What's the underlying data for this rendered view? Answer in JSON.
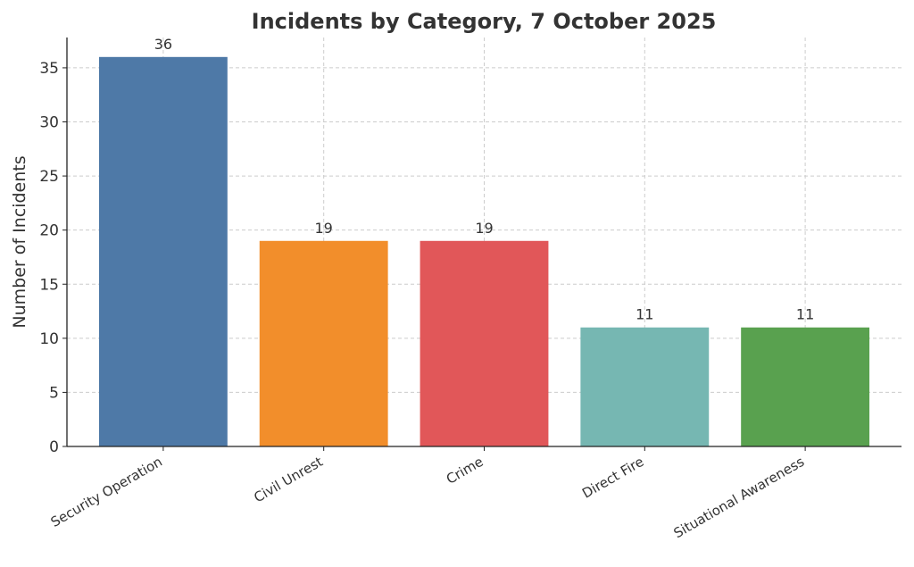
{
  "chart_data": {
    "type": "bar",
    "title": "Incidents by Category, 7 October 2025",
    "y_label": "Number of Incidents",
    "categories": [
      "Security Operation",
      "Civil Unrest",
      "Crime",
      "Direct Fire",
      "Situational Awareness"
    ],
    "values": [
      36,
      19,
      19,
      11,
      11
    ],
    "colors": [
      "#4e79a7",
      "#f28e2b",
      "#e15759",
      "#76b7b2",
      "#59a14f"
    ],
    "ylim": [
      0,
      37.8
    ],
    "yticks": [
      0,
      5,
      10,
      15,
      20,
      25,
      30,
      35
    ],
    "grid": true
  }
}
